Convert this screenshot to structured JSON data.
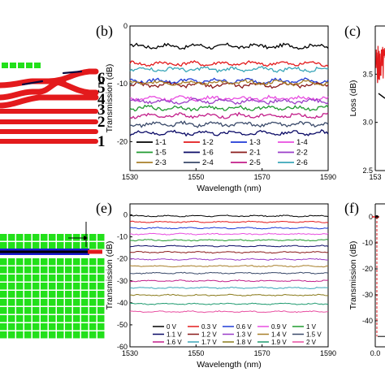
{
  "panels": {
    "b": "(b)",
    "c": "(c)",
    "e": "(e)",
    "f": "(f)"
  },
  "device_ports": [
    "6",
    "5",
    "4",
    "3",
    "2",
    "1"
  ],
  "colors": {
    "waveguide": "#e31a1c",
    "core": "#0a0a40",
    "green_pad": "#22e01a",
    "panel_e_waveguide": "#1a1ad0"
  },
  "chart_data": [
    {
      "id": "b",
      "type": "line",
      "xlabel": "Wavelength (nm)",
      "ylabel": "Transmission (dB)",
      "xlim": [
        1530,
        1590
      ],
      "ylim": [
        -25,
        0
      ],
      "xticks": [
        "1530",
        "1550",
        "1570",
        "1590"
      ],
      "yticks": [
        "0",
        "-10",
        "-20"
      ],
      "grid": false,
      "legend_position": "bottom",
      "series": [
        {
          "name": "1-1",
          "color": "#000000",
          "level": -3.5
        },
        {
          "name": "1-2",
          "color": "#e31a1c",
          "level": -6.5
        },
        {
          "name": "1-3",
          "color": "#1f3ad6",
          "level": -9.5
        },
        {
          "name": "1-4",
          "color": "#e84ee0",
          "level": -12.5
        },
        {
          "name": "1-5",
          "color": "#1f9a2f",
          "level": -14.2
        },
        {
          "name": "1-6",
          "color": "#0a0a66",
          "level": -18.5
        },
        {
          "name": "2-1",
          "color": "#8a1a1a",
          "level": -10.2
        },
        {
          "name": "2-2",
          "color": "#9a3cc8",
          "level": -13.0
        },
        {
          "name": "2-3",
          "color": "#a87f2a",
          "level": -9.8
        },
        {
          "name": "2-4",
          "color": "#3a4a6a",
          "level": -17.0
        },
        {
          "name": "2-5",
          "color": "#c21e8a",
          "level": -15.5
        },
        {
          "name": "2-6",
          "color": "#3aa6b8",
          "level": -7.5
        }
      ]
    },
    {
      "id": "c",
      "type": "line",
      "ylabel": "Loss (dB)",
      "ylim": [
        2.5,
        4.0
      ],
      "yticks": [
        "3.5",
        "3.0",
        "2.5"
      ],
      "xticks": [
        "153"
      ]
    },
    {
      "id": "e",
      "type": "line",
      "xlabel": "Wavelength (nm)",
      "ylabel": "Transmission (dB)",
      "xlim": [
        1530,
        1590
      ],
      "ylim": [
        -60,
        5
      ],
      "xticks": [
        "1530",
        "1550",
        "1570",
        "1590"
      ],
      "yticks": [
        "0",
        "-10",
        "-20",
        "-30",
        "-40",
        "-50",
        "-60"
      ],
      "grid": false,
      "legend_position": "bottom",
      "series": [
        {
          "name": "0 V",
          "color": "#000000",
          "level": -0.5
        },
        {
          "name": "0.3 V",
          "color": "#e31a1c",
          "level": -3.2
        },
        {
          "name": "0.6 V",
          "color": "#1f3ad6",
          "level": -6.0
        },
        {
          "name": "0.9 V",
          "color": "#e84ee0",
          "level": -8.7
        },
        {
          "name": "1 V",
          "color": "#1f9a2f",
          "level": -11.5
        },
        {
          "name": "1.1 V",
          "color": "#0a0a66",
          "level": -14.2
        },
        {
          "name": "1.2 V",
          "color": "#8a1a1a",
          "level": -17.0
        },
        {
          "name": "1.3 V",
          "color": "#9a3cc8",
          "level": -20.2
        },
        {
          "name": "1.4 V",
          "color": "#a87f2a",
          "level": -23.3
        },
        {
          "name": "1.5 V",
          "color": "#3a4a6a",
          "level": -26.5
        },
        {
          "name": "1.6 V",
          "color": "#c21e8a",
          "level": -30.0
        },
        {
          "name": "1.7 V",
          "color": "#3aa6b8",
          "level": -33.2
        },
        {
          "name": "1.8 V",
          "color": "#8a7a1a",
          "level": -36.5
        },
        {
          "name": "1.9 V",
          "color": "#1f9a6f",
          "level": -40.5
        },
        {
          "name": "2 V",
          "color": "#e84ea0",
          "level": -44.0
        }
      ]
    },
    {
      "id": "f",
      "type": "line",
      "ylabel": "Transmission (dB)",
      "ylim": [
        -50,
        5
      ],
      "yticks": [
        "0",
        "-10",
        "-20",
        "-30",
        "-40"
      ],
      "xticks": [
        "0.0"
      ]
    }
  ]
}
